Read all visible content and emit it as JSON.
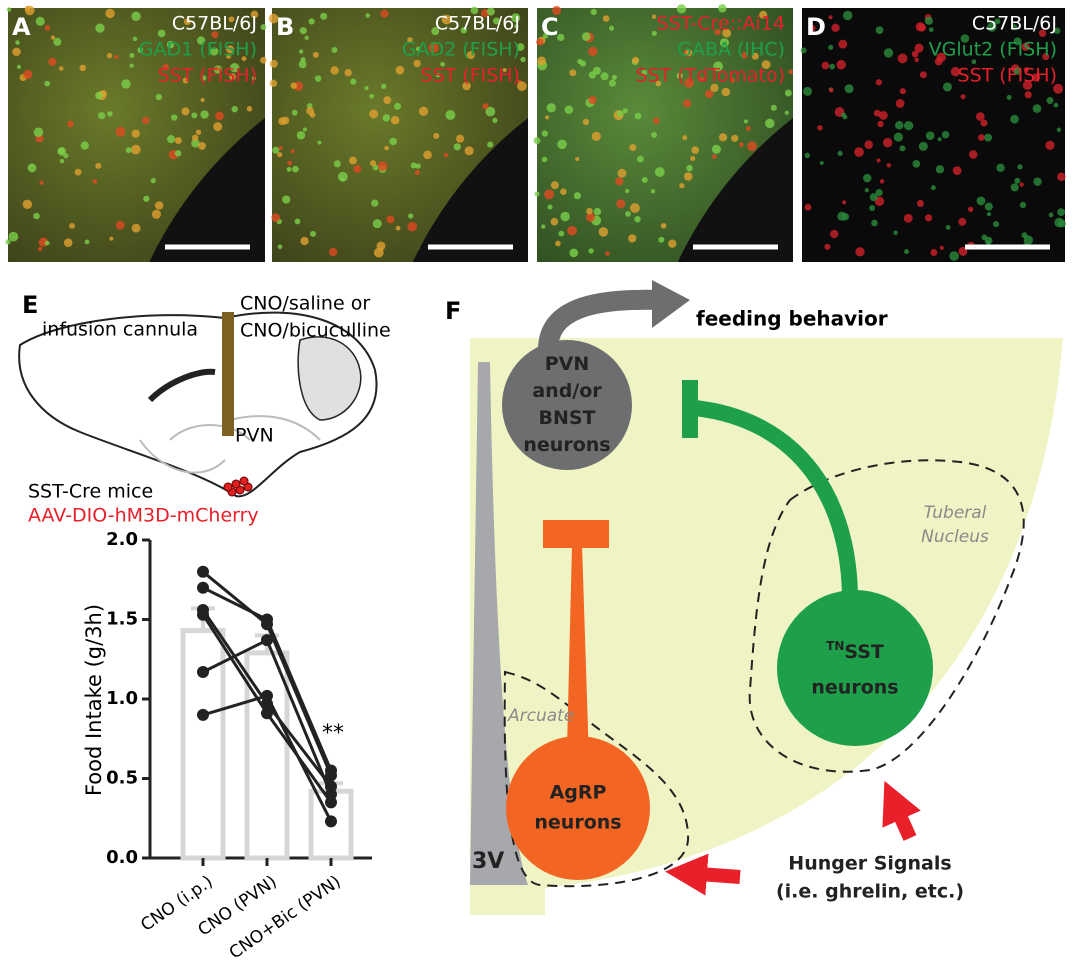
{
  "panels": [
    {
      "letter": "A",
      "lines": [
        "C57BL/6J",
        "GAD1 (FISH)",
        "SST (FISH)"
      ]
    },
    {
      "letter": "B",
      "lines": [
        "C57BL/6J",
        "GAD2 (FISH)",
        "SST (FISH)"
      ]
    },
    {
      "letter": "C",
      "lines": [
        "SST-Cre::Ai14",
        "GABA (IHC)",
        "SST (TdTomato)"
      ]
    },
    {
      "letter": "D",
      "lines": [
        "C57BL/6J",
        "VGlut2 (FISH)",
        "SST (FISH)"
      ]
    }
  ],
  "panel_e": {
    "letter": "E",
    "cannula_label": "infusion cannula",
    "infusion_lines": [
      "CNO/saline or",
      "CNO/bicuculline"
    ],
    "region_label": "PVN",
    "mouse_label": "SST-Cre mice",
    "virus_label": "AAV-DIO-hM3D-mCherry",
    "chart": {
      "type": "bar",
      "ylabel": "Food Intake (g/3h)",
      "categories": [
        "CNO (i.p.)",
        "CNO (PVN)",
        "CNO+Bic (PVN)"
      ],
      "values": [
        1.43,
        1.29,
        0.42
      ],
      "errors": [
        0.14,
        0.11,
        0.05
      ],
      "ylim": [
        0,
        2.0
      ],
      "yticks": [
        {
          "value": 0,
          "label": "0.0"
        },
        0.5,
        {
          "value": 1,
          "label": "1.0"
        },
        1.5,
        {
          "value": 2,
          "label": "2.0"
        }
      ],
      "annotation": "**",
      "points": [
        [
          1.8,
          1.47,
          0.52
        ],
        [
          1.7,
          1.5,
          0.55
        ],
        [
          1.56,
          0.97,
          0.45
        ],
        [
          1.53,
          0.91,
          0.35
        ],
        [
          1.17,
          1.37,
          0.4
        ],
        [
          0.9,
          1.02,
          0.23
        ]
      ]
    }
  },
  "panel_f": {
    "letter": "F",
    "output_label": "feeding behavior",
    "pvn_lines": [
      "PVN",
      "and/or",
      "BNST",
      "neurons"
    ],
    "agrp_lines": [
      "AgRP",
      "neurons"
    ],
    "sst_superscript": "TN",
    "sst_lines": [
      "SST",
      "neurons"
    ],
    "tuberal_lines": [
      "Tuberal",
      "Nucleus"
    ],
    "arcuate_label": "Arcuate",
    "ventricle_label": "3V",
    "hunger_lines": [
      "Hunger Signals",
      "(i.e. ghrelin, etc.)"
    ]
  }
}
